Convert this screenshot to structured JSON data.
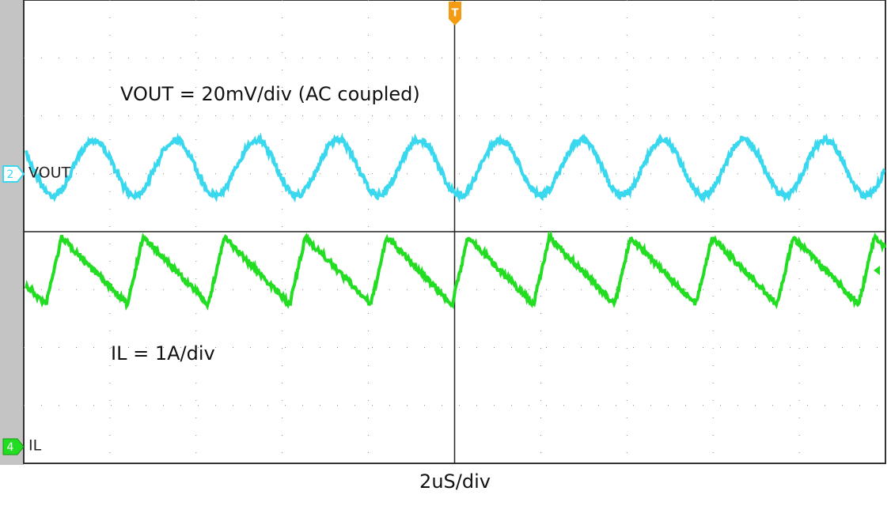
{
  "screen": {
    "trigger_marker": "T",
    "channels": [
      {
        "number": "2",
        "label": "VOUT"
      },
      {
        "number": "4",
        "label": "IL"
      }
    ],
    "annotations": [
      "VOUT = 20mV/div (AC coupled)",
      "IL = 1A/div"
    ]
  },
  "footer": {
    "timebase": "2uS/div"
  }
}
